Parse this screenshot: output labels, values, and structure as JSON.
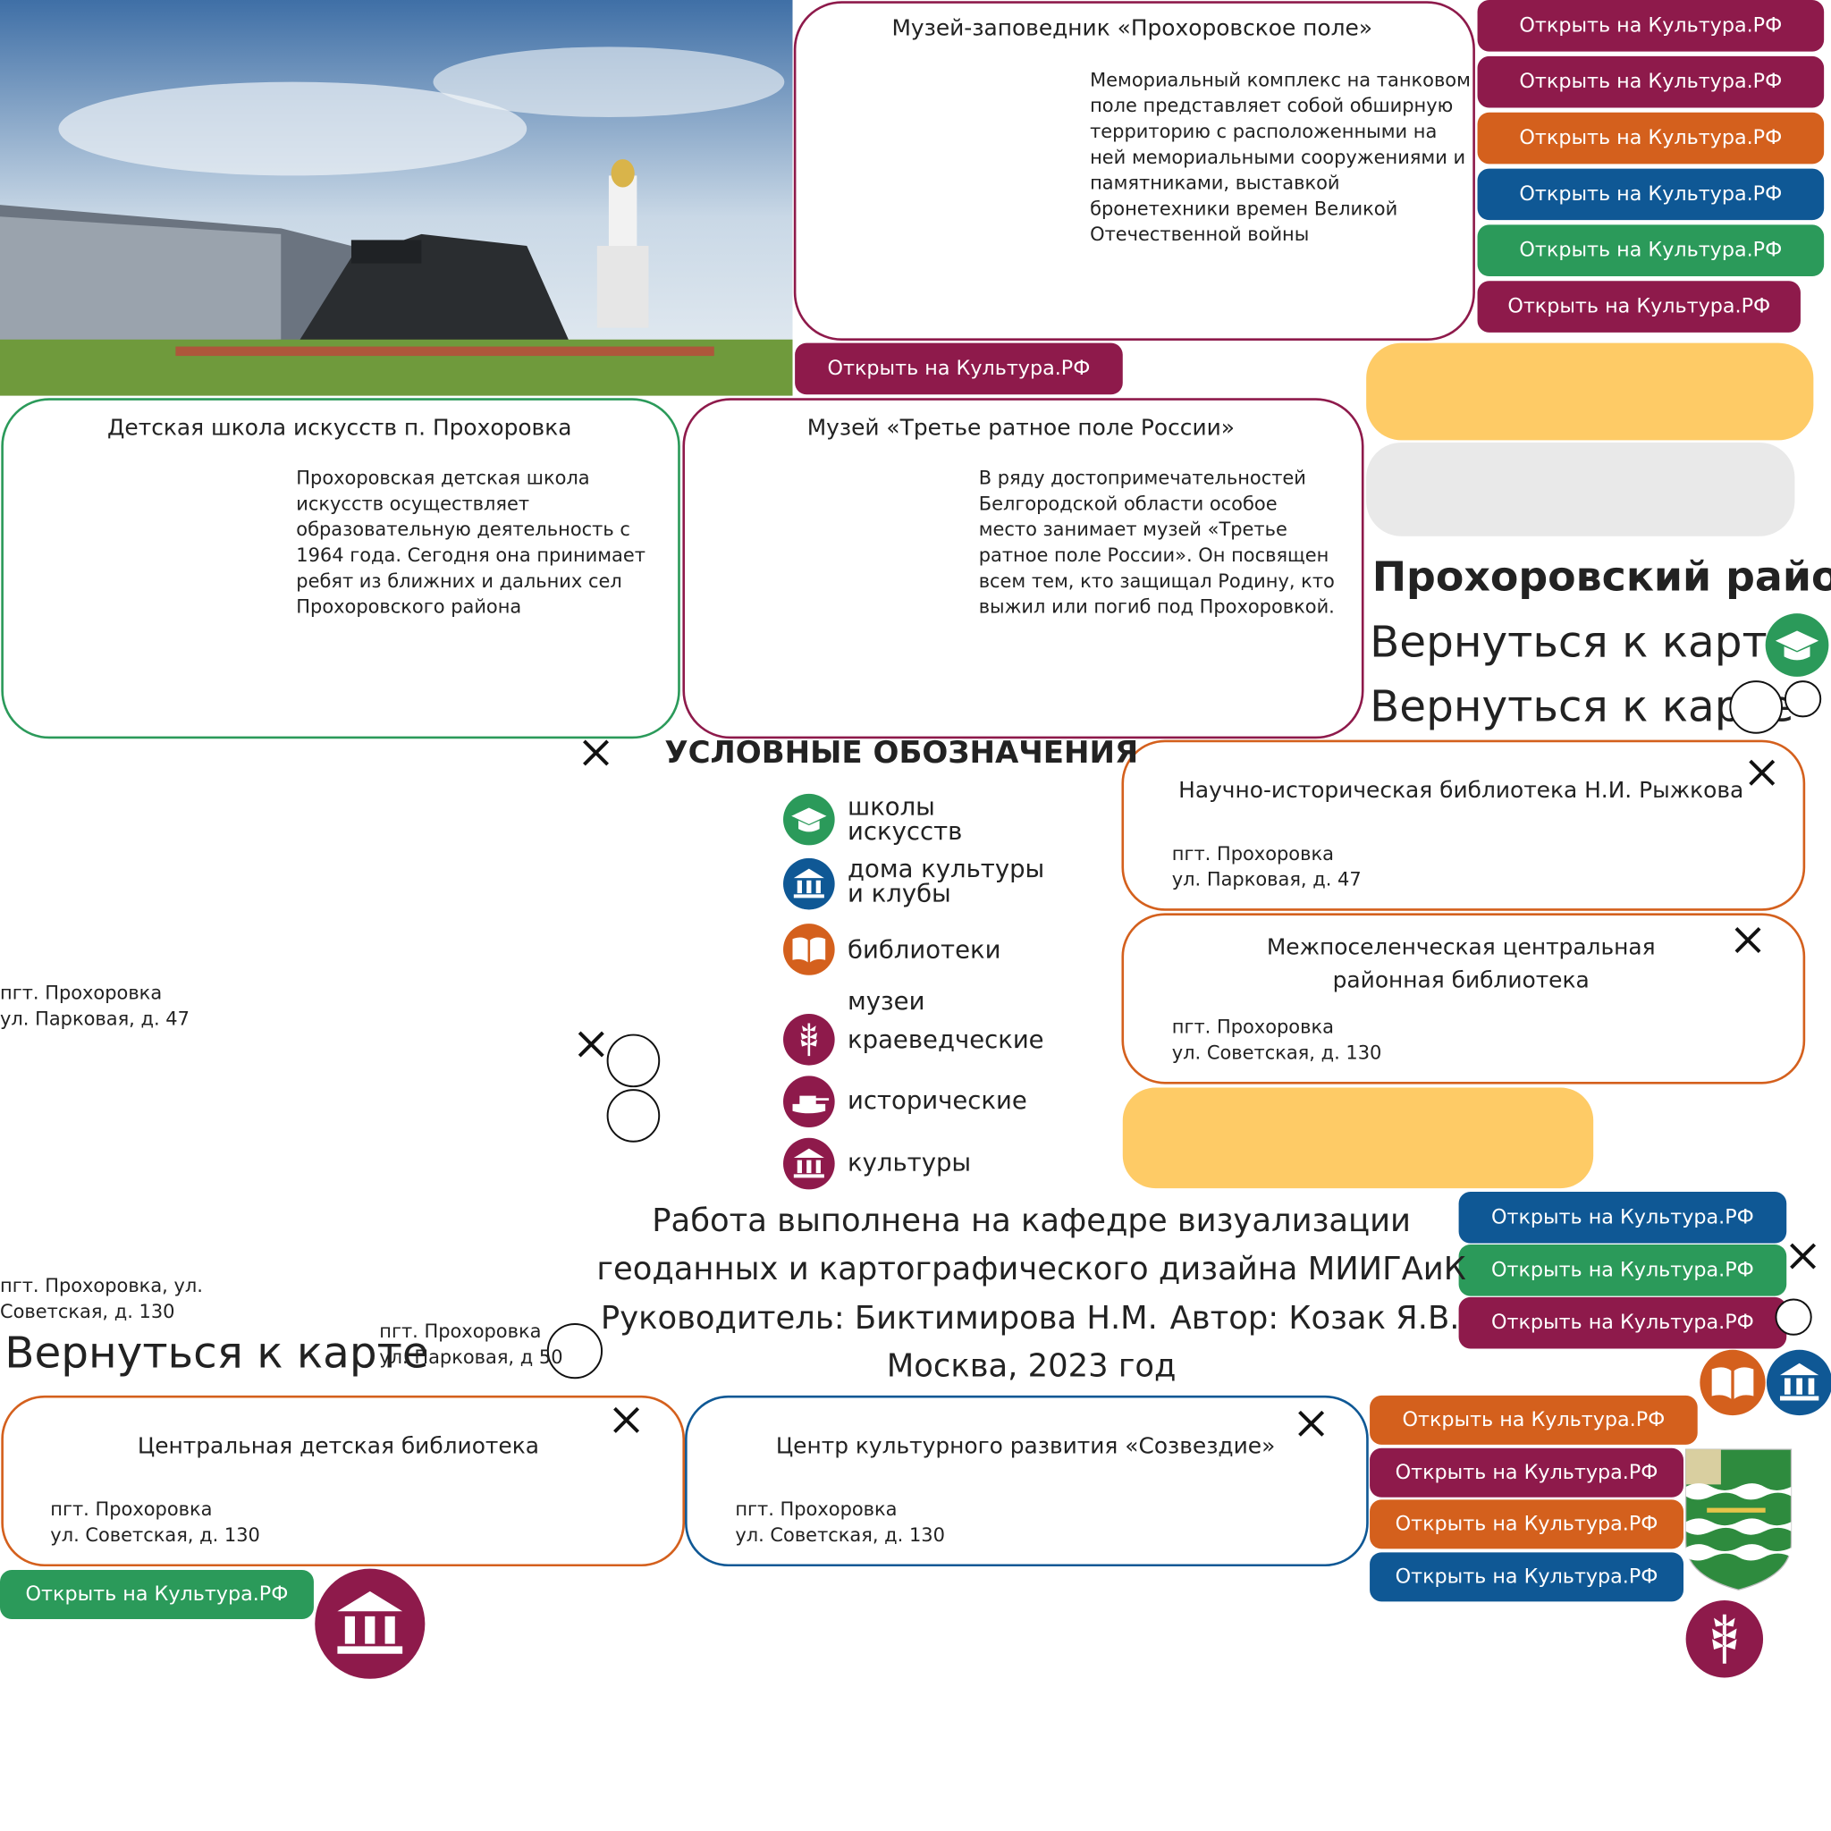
{
  "museum_cards": [
    {
      "title": "Музей-заповедник «Прохоровское поле»",
      "description": [
        "Мемориальный комплекс на танковом",
        "поле представляет собой обширную",
        "территорию с расположенными на",
        "ней мемориальными сооружениями и",
        "памятниками, выставкой",
        "бронетехники времен Великой",
        "Отечественной войны"
      ]
    },
    {
      "title": "Детская школа искусств п. Прохоровка",
      "description": [
        "Прохоровская детская школа",
        "искусств осуществляет",
        "образовательную деятельность с",
        "1964 года. Сегодня она принимает",
        "ребят из ближних и дальних сел",
        "Прохоровского района"
      ]
    },
    {
      "title": "Музей «Третье ратное поле России»",
      "description": [
        "В ряду достопримечательностей",
        "Белгородской области особое",
        "место занимает музей «Третье",
        "ратное поле России». Он посвящен",
        "всем тем, кто защищал Родину, кто",
        "выжил или погиб под Прохоровкой."
      ]
    }
  ],
  "library_cards": [
    {
      "title": [
        "Научно-историческая библиотека Н.И. Рыжкова"
      ],
      "address": [
        "пгт. Прохоровка",
        "ул. Парковая, д. 47"
      ]
    },
    {
      "title": [
        "Межпоселенческая центральная",
        "районная библиотека"
      ],
      "address": [
        "пгт. Прохоровка",
        "ул. Советская, д. 130"
      ]
    },
    {
      "title": [
        "Центральная детская библиотека"
      ],
      "address": [
        "пгт. Прохоровка",
        "ул. Советская, д. 130"
      ]
    },
    {
      "title": [
        "Центр культурного развития «Созвездие»"
      ],
      "address": [
        "пгт. Прохоровка",
        "ул. Советская, д. 130"
      ]
    }
  ],
  "buttons": [
    "Открыть на Культура.РФ",
    "Открыть на Культура.РФ",
    "Открыть на Культура.РФ",
    "Открыть на Культура.РФ",
    "Открыть на Культура.РФ",
    "Открыть на Культура.РФ",
    "Открыть на Культура.РФ",
    "Открыть на Культура.РФ",
    "Открыть на Культура.РФ",
    "Открыть на Культура.РФ",
    "Открыть на Культура.РФ",
    "Открыть на Культура.РФ",
    "Открыть на Культура.РФ",
    "Открыть на Культура.РФ",
    "Открыть на Культура.РФ"
  ],
  "region_title": "Прохоровский район",
  "back_to_map": [
    "Вернуться к карте",
    "Вернуться к карте",
    "Вернуться к карте"
  ],
  "legend": {
    "title": "УСЛОВНЫЕ ОБОЗНАЧЕНИЯ",
    "museums_heading": "музеи",
    "items": [
      [
        "школы",
        "искусств"
      ],
      [
        "дома культуры",
        "и клубы"
      ],
      [
        "библиотеки"
      ],
      [
        "краеведческие"
      ],
      [
        "исторические"
      ],
      [
        "культуры"
      ]
    ]
  },
  "loose_addresses": [
    [
      "пгт. Прохоровка",
      "ул. Парковая, д. 47"
    ],
    [
      "пгт. Прохоровка, ул.",
      "Советская, д. 130"
    ],
    [
      "пгт. Прохоровка",
      "ул. Парковая, д 50"
    ]
  ],
  "credits": [
    "Работа выполнена на кафедре визуализации",
    "геоданных и картографического дизайна МИИГАиК",
    "Руководитель: Биктимирова Н.М.",
    "Автор: Козак Я.В.",
    "Москва, 2023 год"
  ]
}
